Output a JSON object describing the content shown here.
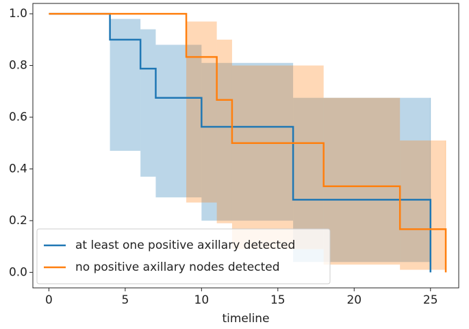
{
  "chart_data": {
    "type": "step",
    "xlabel": "timeline",
    "xlim": [
      -1.05,
      26.85
    ],
    "xticks": [
      0,
      5,
      10,
      15,
      20,
      25
    ],
    "ylim": [
      -0.06,
      1.04
    ],
    "yticks": [
      {
        "value": 0,
        "label": "0.0"
      },
      0.2,
      0.4,
      0.6,
      0.8,
      {
        "value": 1,
        "label": "1.0"
      }
    ],
    "legend": "lower left",
    "series": [
      {
        "name": "at least one positive axillary detected",
        "color": "#1f77b4",
        "x": [
          0,
          4,
          6,
          7,
          10,
          16,
          25
        ],
        "values": [
          1,
          0.9,
          0.788,
          0.675,
          0.563,
          0.281,
          0
        ],
        "ci_upper": [
          1,
          0.98,
          0.94,
          0.88,
          0.81,
          0.675,
          0.675
        ],
        "ci_lower": [
          1,
          0.47,
          0.37,
          0.29,
          0.2,
          0.04,
          0.04
        ]
      },
      {
        "name": "no positive axillary nodes detected",
        "color": "#ff7f0e",
        "x": [
          0,
          9,
          11,
          12,
          18,
          23,
          26
        ],
        "values": [
          1,
          0.833,
          0.667,
          0.5,
          0.333,
          0.167,
          0
        ],
        "ci_upper": [
          1,
          0.97,
          0.9,
          0.8,
          0.675,
          0.51,
          0.51
        ],
        "ci_lower": [
          1,
          0.27,
          0.19,
          0.09,
          0.03,
          0.01,
          0.01
        ]
      }
    ]
  }
}
